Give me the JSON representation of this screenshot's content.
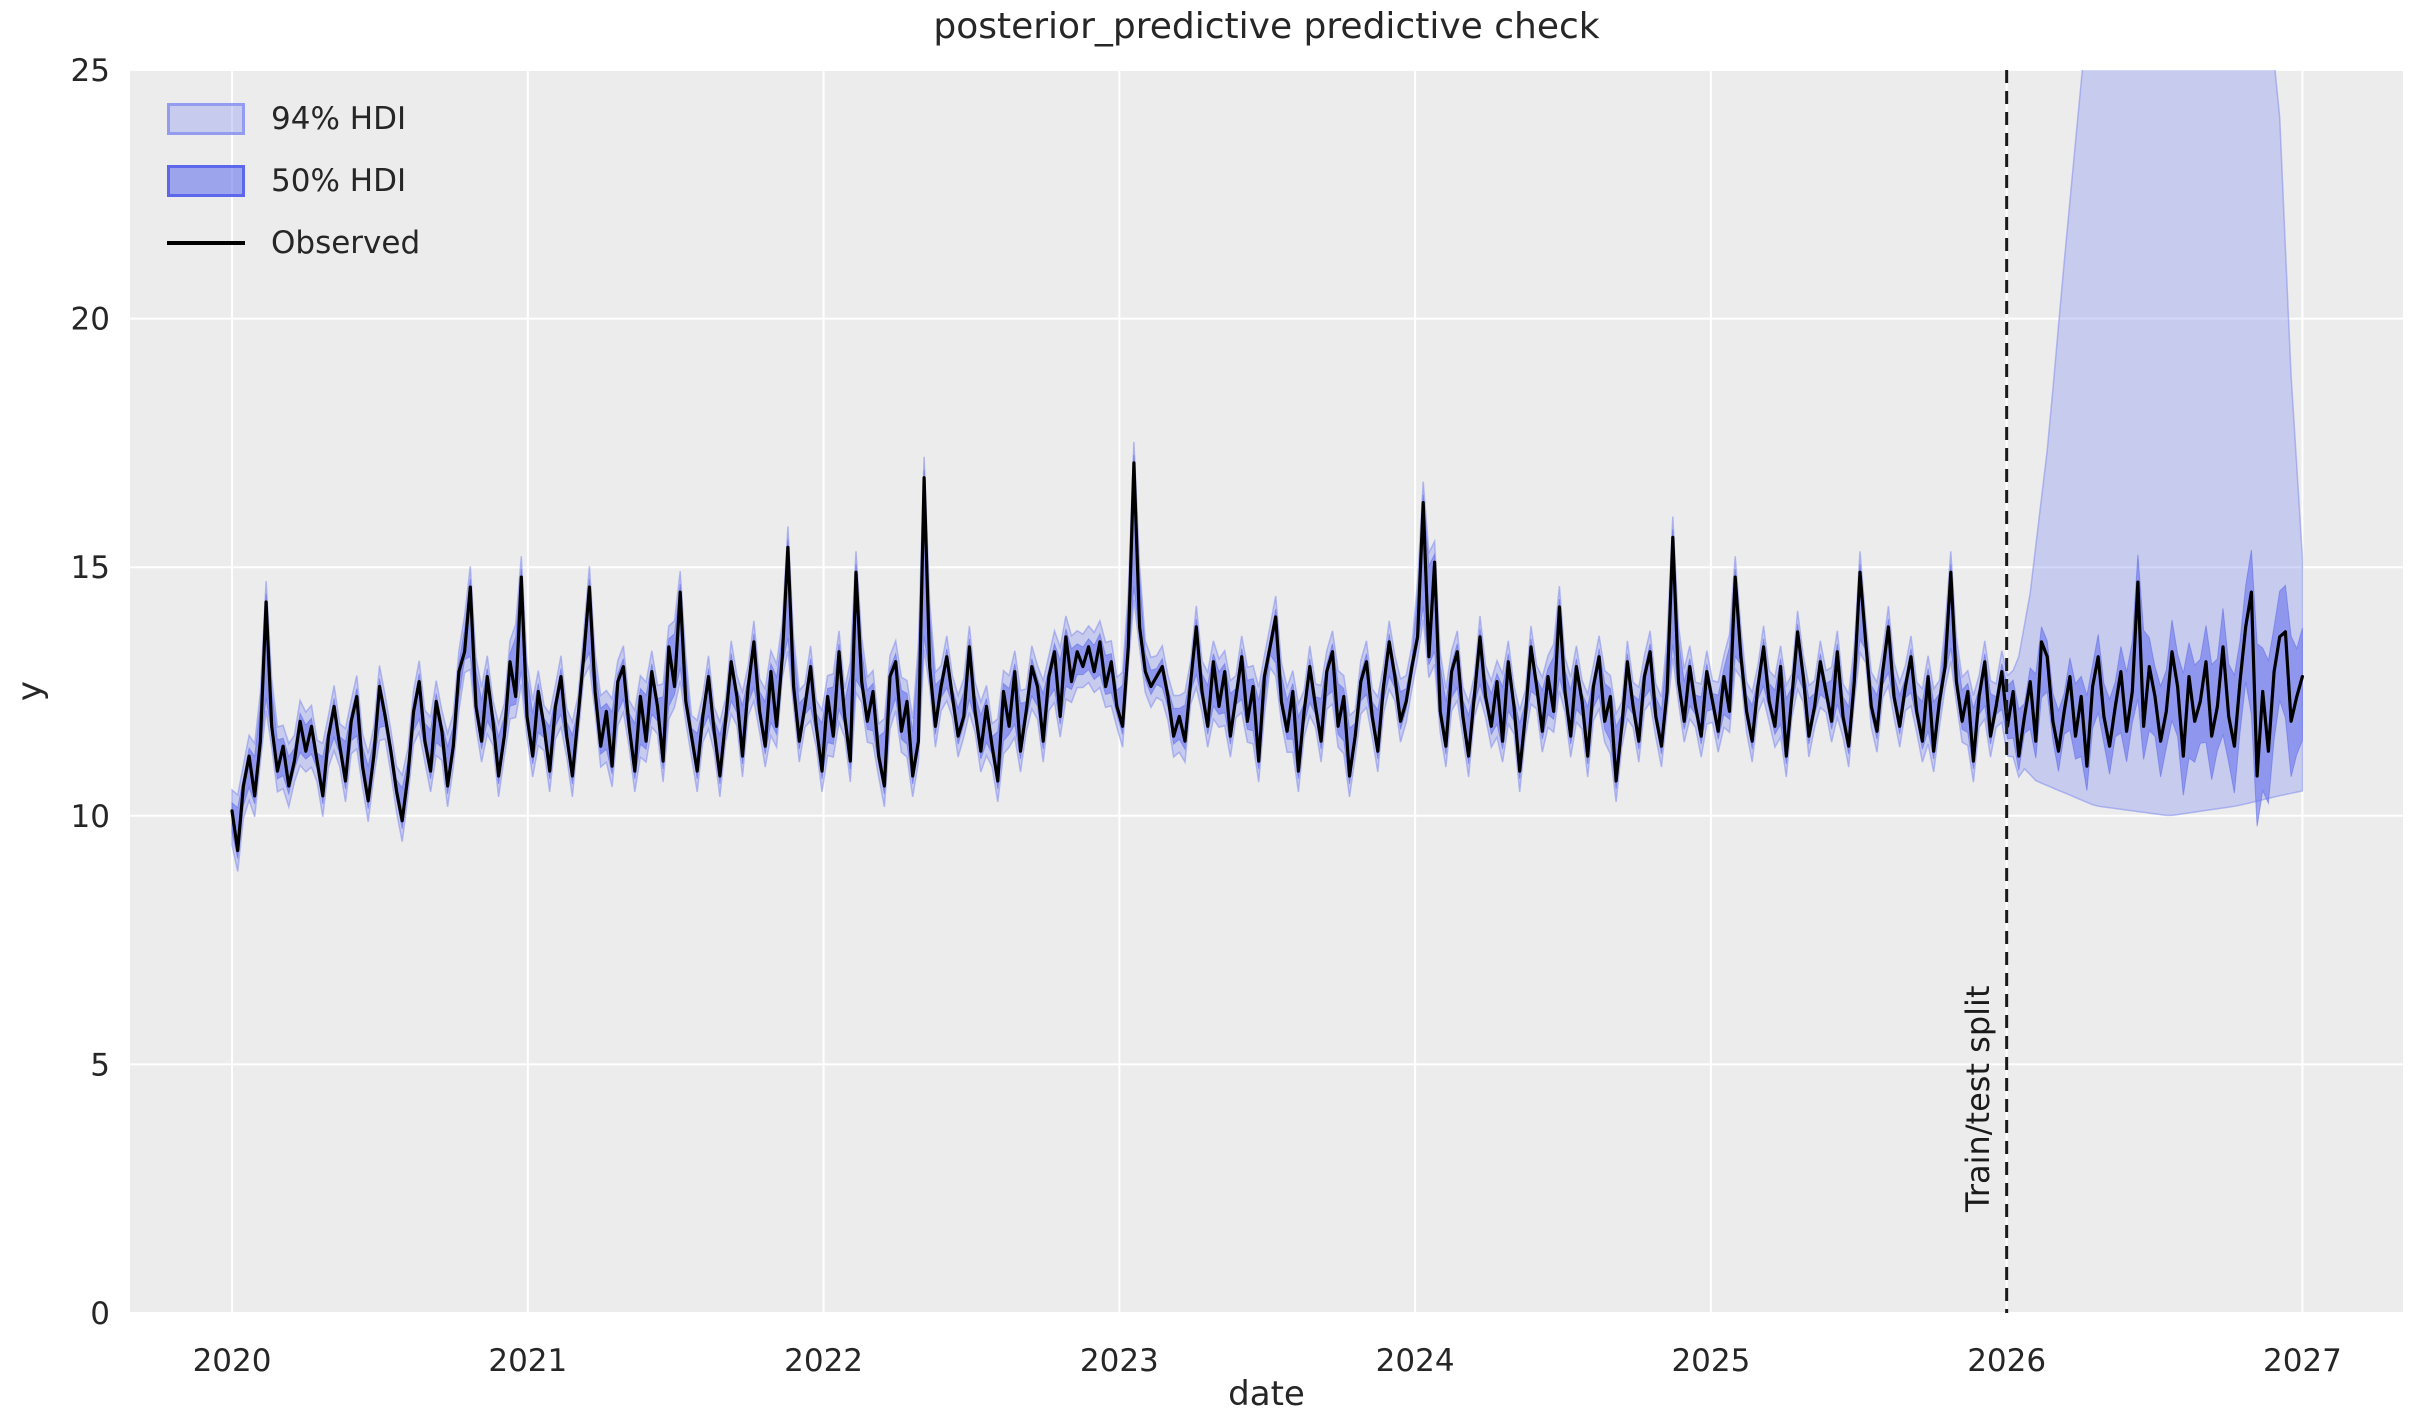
{
  "chart_data": {
    "type": "line",
    "title": "posterior_predictive predictive check",
    "xlabel": "date",
    "ylabel": "y",
    "xlim": [
      2019.655,
      2027.34
    ],
    "ylim": [
      0,
      25
    ],
    "xticks": [
      2020,
      2021,
      2022,
      2023,
      2024,
      2025,
      2026,
      2027
    ],
    "xtick_labels": [
      "2020",
      "2021",
      "2022",
      "2023",
      "2024",
      "2025",
      "2026",
      "2027"
    ],
    "yticks": [
      0,
      5,
      10,
      15,
      20,
      25
    ],
    "ytick_labels": [
      "0",
      "5",
      "10",
      "15",
      "20",
      "25"
    ],
    "grid": true,
    "legend": {
      "location": "upper left",
      "items": [
        {
          "label": "94% HDI",
          "type": "patch"
        },
        {
          "label": "50% HDI",
          "type": "patch"
        },
        {
          "label": "Observed",
          "type": "line"
        }
      ]
    },
    "annotation": {
      "text": "Train/test split",
      "x": 2026.0,
      "rotation_deg": -90,
      "line_style": "dashed"
    },
    "colors": {
      "background": "#ececec",
      "grid": "#ffffff",
      "text": "#262626",
      "observed": "#000000",
      "split_line": "#1a1a1a",
      "hdi94_fill": "rgba(144,154,241,0.40)",
      "hdi94_edge": "rgba(130,140,238,0.55)",
      "hdi50_fill": "rgba(104,116,236,0.60)",
      "hdi50_edge": "rgba(95,107,235,0.55)"
    },
    "series": {
      "split_x": 2026.0,
      "observed": {
        "name": "Observed",
        "cadence": "weekly",
        "x_start": 2020.0,
        "x_end": 2027.0,
        "values": [
          10.1,
          9.3,
          10.6,
          11.2,
          10.4,
          11.5,
          14.3,
          11.8,
          10.9,
          11.4,
          10.6,
          11.1,
          11.9,
          11.3,
          11.8,
          11.1,
          10.4,
          11.6,
          12.2,
          11.4,
          10.7,
          11.9,
          12.4,
          11.0,
          10.3,
          11.2,
          12.6,
          12.0,
          11.3,
          10.5,
          9.9,
          10.8,
          12.1,
          12.7,
          11.5,
          10.9,
          12.3,
          11.7,
          10.6,
          11.4,
          12.9,
          13.3,
          14.6,
          12.2,
          11.5,
          12.8,
          11.9,
          10.8,
          11.6,
          13.1,
          12.4,
          14.8,
          12.0,
          11.2,
          12.5,
          11.8,
          10.9,
          12.2,
          12.8,
          11.6,
          10.8,
          12.0,
          13.2,
          14.6,
          12.5,
          11.4,
          12.1,
          11.0,
          12.7,
          13.0,
          11.8,
          10.9,
          12.4,
          11.5,
          12.9,
          12.2,
          11.1,
          13.4,
          12.6,
          14.5,
          12.3,
          11.6,
          10.9,
          12.0,
          12.8,
          11.7,
          10.8,
          11.9,
          13.1,
          12.4,
          11.2,
          12.6,
          13.5,
          12.1,
          11.4,
          12.9,
          11.8,
          13.2,
          15.4,
          12.6,
          11.5,
          12.2,
          13.0,
          11.8,
          10.9,
          12.4,
          11.6,
          13.3,
          12.0,
          11.1,
          14.9,
          12.7,
          11.9,
          12.5,
          11.2,
          10.6,
          12.8,
          13.1,
          11.7,
          12.3,
          10.8,
          11.5,
          16.8,
          13.0,
          11.8,
          12.6,
          13.2,
          12.4,
          11.6,
          12.0,
          13.4,
          12.1,
          11.3,
          12.2,
          11.4,
          10.7,
          12.5,
          11.8,
          12.9,
          11.3,
          12.1,
          13.0,
          12.6,
          11.5,
          12.8,
          13.3,
          12.0,
          13.6,
          12.7,
          13.3,
          13.0,
          13.4,
          12.9,
          13.5,
          12.6,
          13.1,
          12.2,
          11.8,
          13.4,
          17.1,
          13.8,
          12.9,
          12.6,
          12.8,
          13.0,
          12.4,
          11.6,
          12.0,
          11.5,
          12.7,
          13.8,
          12.5,
          11.8,
          13.1,
          12.2,
          12.9,
          11.6,
          12.4,
          13.2,
          11.9,
          12.6,
          11.1,
          12.8,
          13.4,
          14.0,
          12.3,
          11.7,
          12.5,
          10.9,
          12.1,
          13.0,
          12.2,
          11.5,
          12.9,
          13.3,
          11.8,
          12.4,
          10.8,
          11.6,
          12.7,
          13.1,
          12.0,
          11.3,
          12.6,
          13.5,
          12.8,
          11.9,
          12.3,
          13.0,
          13.6,
          16.3,
          13.2,
          15.1,
          12.1,
          11.4,
          12.9,
          13.3,
          12.0,
          11.2,
          12.4,
          13.6,
          12.4,
          11.8,
          12.7,
          11.5,
          13.1,
          12.2,
          10.9,
          12.0,
          13.4,
          12.6,
          11.7,
          12.8,
          12.1,
          14.2,
          12.5,
          11.6,
          13.0,
          12.3,
          11.2,
          12.6,
          13.2,
          11.9,
          12.4,
          10.7,
          11.8,
          13.1,
          12.2,
          11.5,
          12.8,
          13.3,
          12.0,
          11.4,
          12.5,
          15.6,
          12.7,
          11.9,
          13.0,
          12.2,
          11.6,
          12.9,
          12.3,
          11.7,
          12.8,
          12.1,
          14.8,
          13.2,
          12.1,
          11.5,
          12.6,
          13.4,
          12.3,
          11.8,
          13.0,
          11.2,
          12.4,
          13.7,
          12.8,
          11.6,
          12.2,
          13.1,
          12.5,
          11.9,
          13.3,
          12.0,
          11.4,
          12.7,
          14.9,
          13.5,
          12.2,
          11.7,
          12.9,
          13.8,
          12.4,
          11.8,
          12.6,
          13.2,
          12.1,
          11.5,
          12.8,
          11.3,
          12.3,
          13.0,
          14.9,
          12.7,
          11.9,
          12.5,
          11.1,
          12.4,
          13.1,
          11.6,
          12.2,
          12.9,
          11.8,
          12.5,
          11.2,
          12.0,
          12.7,
          11.5,
          13.5,
          13.2,
          11.9,
          11.3,
          12.1,
          12.8,
          11.6,
          12.4,
          11.0,
          12.6,
          13.2,
          12.0,
          11.4,
          12.2,
          12.9,
          11.7,
          12.5,
          14.7,
          11.8,
          13.0,
          12.4,
          11.5,
          12.1,
          13.3,
          12.6,
          11.2,
          12.8,
          11.9,
          12.3,
          13.1,
          11.6,
          12.2,
          13.4,
          12.0,
          11.4,
          12.7,
          13.8,
          14.5,
          10.8,
          12.5,
          11.3,
          12.9,
          13.6,
          13.7,
          11.9,
          12.4,
          12.8
        ]
      },
      "hdi94": {
        "name": "94% HDI",
        "train_pad": 0.42,
        "test_hi": [
          [
            2026.02,
            12.5
          ],
          [
            2026.08,
            14.5
          ],
          [
            2026.14,
            17.5
          ],
          [
            2026.2,
            21.5
          ],
          [
            2026.28,
            26.5
          ],
          [
            2026.85,
            27.5
          ],
          [
            2026.92,
            24.5
          ],
          [
            2026.96,
            19.0
          ],
          [
            2027.0,
            15.2
          ]
        ],
        "test_lo": [
          [
            2026.02,
            11.2
          ],
          [
            2026.1,
            10.7
          ],
          [
            2026.3,
            10.2
          ],
          [
            2026.55,
            10.0
          ],
          [
            2026.78,
            10.2
          ],
          [
            2026.92,
            10.4
          ],
          [
            2027.0,
            10.5
          ]
        ]
      },
      "hdi50": {
        "name": "50% HDI",
        "train_pad": 0.16,
        "test_pad_start": 0.25,
        "test_pad_end": 1.15
      }
    }
  }
}
